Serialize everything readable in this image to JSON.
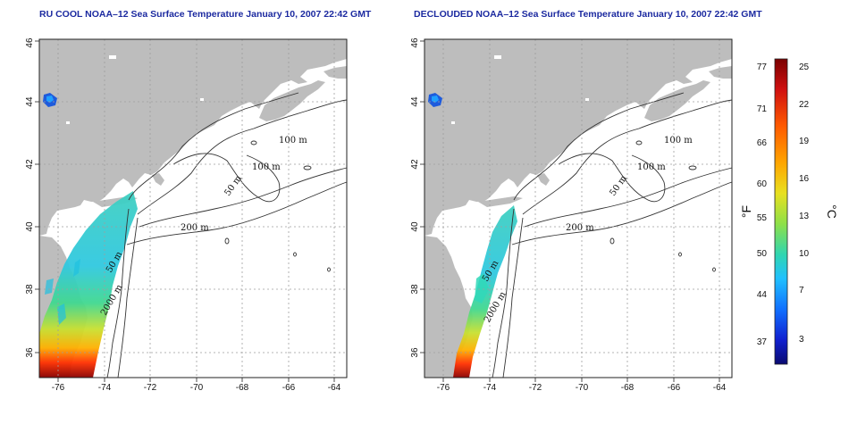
{
  "maps": [
    {
      "id": "left",
      "title": "RU COOL NOAA–12 Sea Surface Temperature January 10, 2007 22:42 GMT",
      "x_ticks": [
        "-76",
        "-74",
        "-72",
        "-70",
        "-68",
        "-66",
        "-64"
      ],
      "y_ticks": [
        "36",
        "38",
        "40",
        "42",
        "44",
        "46"
      ],
      "contour_labels": [
        "100 m",
        "100 m",
        "50 m",
        "200 m",
        "50 m",
        "2000 m"
      ]
    },
    {
      "id": "right",
      "title": "DECLOUDED NOAA–12 Sea Surface Temperature January 10, 2007 22:42 GMT",
      "x_ticks": [
        "-76",
        "-74",
        "-72",
        "-70",
        "-68",
        "-66",
        "-64"
      ],
      "y_ticks": [
        "36",
        "38",
        "40",
        "42",
        "44",
        "46"
      ],
      "contour_labels": [
        "100 m",
        "100 m",
        "50 m",
        "200 m",
        "50 m",
        "2000 m"
      ]
    }
  ],
  "colorbar": {
    "fahrenheit_ticks": [
      "77",
      "71",
      "66",
      "60",
      "55",
      "50",
      "44",
      "37"
    ],
    "celsius_ticks": [
      "25",
      "22",
      "19",
      "16",
      "13",
      "10",
      "7",
      "3"
    ],
    "fahrenheit_unit": "°F",
    "celsius_unit": "°C",
    "colors": [
      "#7a0000",
      "#d01010",
      "#ff5a00",
      "#ffa500",
      "#e8e020",
      "#8ee048",
      "#30d6b0",
      "#20c0ff",
      "#1070ff",
      "#1020d0",
      "#0a0a70"
    ]
  },
  "colors": {
    "land": "#bdbdbd",
    "ocean": "#ffffff",
    "grid": "#9e9e9e",
    "contour": "#333333",
    "title": "#1c2aa0"
  }
}
